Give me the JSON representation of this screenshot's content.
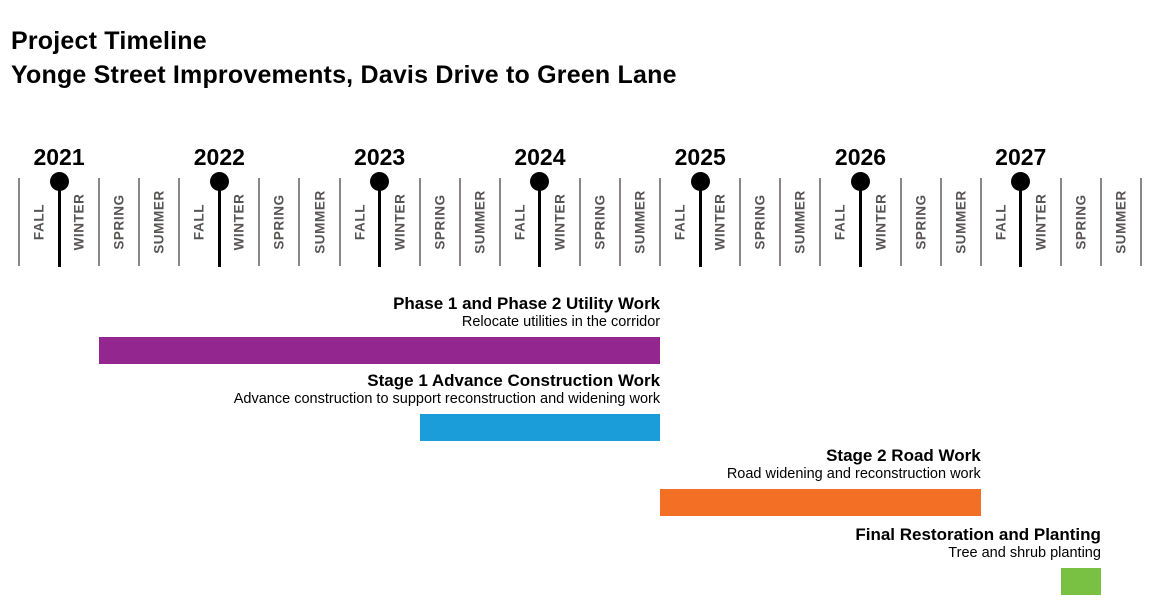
{
  "page": {
    "title_line1": "Project Timeline",
    "title_line2": "Yonge Street Improvements, Davis Drive to Green Lane"
  },
  "chart_data": {
    "type": "bar",
    "variant": "gantt-season-timeline",
    "title": "Project Timeline",
    "subtitle": "Yonge Street Improvements, Davis Drive to Green Lane",
    "grid": false,
    "legend_position": "none",
    "axis": {
      "orientation": "horizontal",
      "years": [
        {
          "label": "2021",
          "boundary": 1
        },
        {
          "label": "2022",
          "boundary": 5
        },
        {
          "label": "2023",
          "boundary": 9
        },
        {
          "label": "2024",
          "boundary": 13
        },
        {
          "label": "2025",
          "boundary": 17
        },
        {
          "label": "2026",
          "boundary": 21
        },
        {
          "label": "2027",
          "boundary": 25
        }
      ],
      "season_slots": [
        "FALL",
        "WINTER",
        "SPRING",
        "SUMMER",
        "FALL",
        "WINTER",
        "SPRING",
        "SUMMER",
        "FALL",
        "WINTER",
        "SPRING",
        "SUMMER",
        "FALL",
        "WINTER",
        "SPRING",
        "SUMMER",
        "FALL",
        "WINTER",
        "SPRING",
        "SUMMER",
        "FALL",
        "WINTER",
        "SPRING",
        "SUMMER",
        "FALL",
        "WINTER",
        "SPRING",
        "SUMMER"
      ],
      "year_marker_note": "black dot-and-stem marker placed at the FALL/WINTER boundary under each year label"
    },
    "series": [
      {
        "name": "Phase 1 and Phase 2 Utility Work",
        "description": "Relocate utilities in the corridor",
        "color": "#93278F",
        "start_boundary": 2,
        "end_boundary": 16,
        "start": "Spring 2021",
        "end": "Summer 2024"
      },
      {
        "name": "Stage 1 Advance Construction Work",
        "description": "Advance construction to support reconstruction and widening work",
        "color": "#1B9DD9",
        "start_boundary": 10,
        "end_boundary": 16,
        "start": "Spring 2023",
        "end": "Summer 2024"
      },
      {
        "name": "Stage 2 Road Work",
        "description": "Road widening and reconstruction work",
        "color": "#F36F26",
        "start_boundary": 16,
        "end_boundary": 24,
        "start": "Fall 2024",
        "end": "Summer 2026"
      },
      {
        "name": "Final Restoration and Planting",
        "description": "Tree and shrub planting",
        "color": "#79C143",
        "start_boundary": 26,
        "end_boundary": 27,
        "start": "Spring 2027",
        "end": "Spring 2027"
      }
    ],
    "colors": {
      "season_label_text": "#595454",
      "tick": "#8A8686",
      "year_marker": "#000000",
      "title_text": "#000000"
    }
  }
}
